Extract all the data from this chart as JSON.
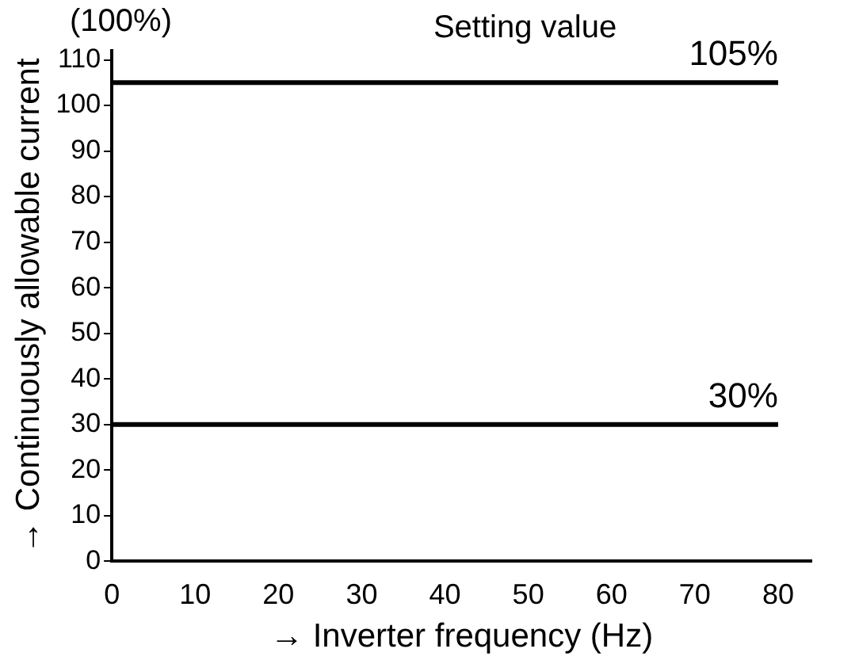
{
  "chart_data": {
    "type": "line",
    "xlabel": "→ Inverter frequency (Hz)",
    "ylabel": "→ Continuously allowable current",
    "annotations": [
      "(100%)",
      "Setting value"
    ],
    "x": [
      0,
      80
    ],
    "series": [
      {
        "color": "#000000",
        "values": [
          105,
          105
        ],
        "value_labels": [
          null,
          "105%"
        ]
      },
      {
        "color": "#000000",
        "values": [
          30,
          30
        ],
        "value_labels": [
          null,
          "30%"
        ]
      }
    ],
    "xlim": [
      0,
      84
    ],
    "xticks": [
      0,
      10,
      20,
      30,
      40,
      50,
      60,
      70,
      80
    ],
    "ylim": [
      0,
      112
    ],
    "yticks": [
      0,
      10,
      20,
      30,
      40,
      50,
      60,
      70,
      80,
      90,
      100,
      110
    ],
    "grid": false,
    "legend": false,
    "marker": "none",
    "line_style": "solid"
  }
}
